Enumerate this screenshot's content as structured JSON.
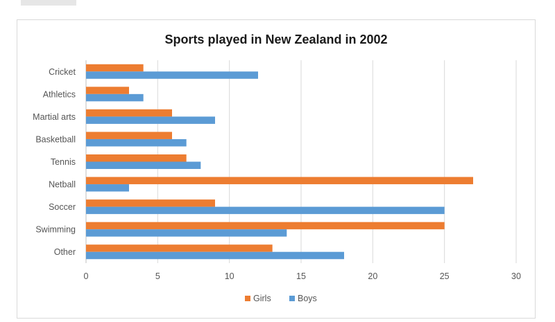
{
  "chart_data": {
    "type": "bar",
    "orientation": "horizontal",
    "title": "Sports played in New Zealand in 2002",
    "categories": [
      "Cricket",
      "Athletics",
      "Martial arts",
      "Basketball",
      "Tennis",
      "Netball",
      "Soccer",
      "Swimming",
      "Other"
    ],
    "series": [
      {
        "name": "Girls",
        "color": "#ed7d31",
        "values": [
          4,
          3,
          6,
          6,
          7,
          27,
          9,
          25,
          13
        ]
      },
      {
        "name": "Boys",
        "color": "#5b9bd5",
        "values": [
          12,
          4,
          9,
          7,
          8,
          3,
          25,
          14,
          18
        ]
      }
    ],
    "xlim": [
      0,
      30
    ],
    "xticks": [
      0,
      5,
      10,
      15,
      20,
      25,
      30
    ],
    "grid": true,
    "legend_position": "bottom"
  }
}
